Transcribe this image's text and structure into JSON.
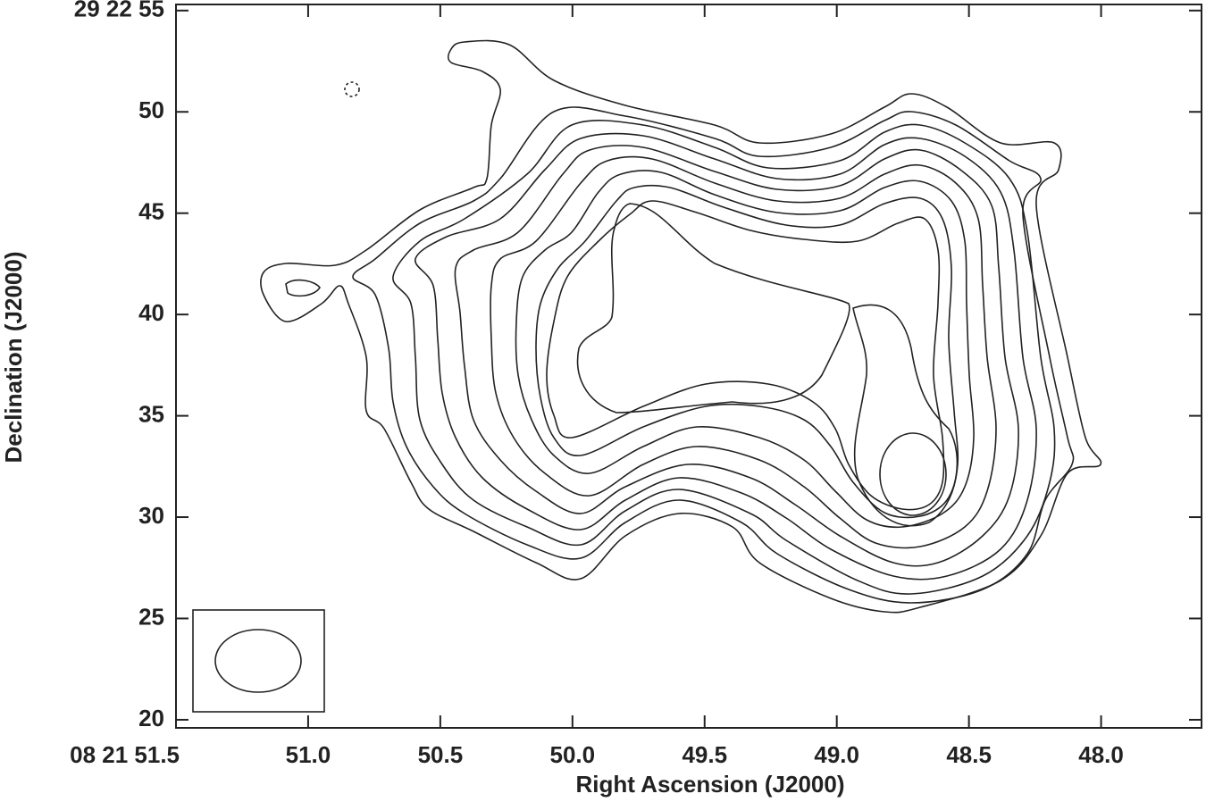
{
  "chart_data": {
    "type": "contour",
    "xlabel": "Right Ascension (J2000)",
    "ylabel": "Declination (J2000)",
    "xlim": [
      51.5,
      47.62
    ],
    "ylim": [
      19.6,
      55.3
    ],
    "xticks": [
      {
        "value": 51.5,
        "label": "08 21 51.5"
      },
      {
        "value": 51,
        "label": "51.0"
      },
      50.5,
      {
        "value": 50,
        "label": "50.0"
      },
      49.5,
      {
        "value": 49,
        "label": "49.0"
      },
      48.5,
      {
        "value": 48,
        "label": "48.0"
      }
    ],
    "yticks": [
      20,
      25,
      30,
      35,
      40,
      45,
      50,
      {
        "value": 55,
        "label": "29 22 55"
      }
    ]
  }
}
